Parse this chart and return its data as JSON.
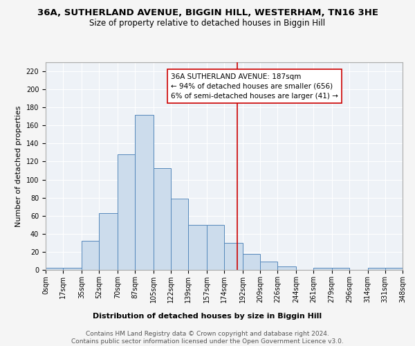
{
  "title": "36A, SUTHERLAND AVENUE, BIGGIN HILL, WESTERHAM, TN16 3HE",
  "subtitle": "Size of property relative to detached houses in Biggin Hill",
  "xlabel": "Distribution of detached houses by size in Biggin Hill",
  "ylabel": "Number of detached properties",
  "bin_labels": [
    "0sqm",
    "17sqm",
    "35sqm",
    "52sqm",
    "70sqm",
    "87sqm",
    "105sqm",
    "122sqm",
    "139sqm",
    "157sqm",
    "174sqm",
    "192sqm",
    "209sqm",
    "226sqm",
    "244sqm",
    "261sqm",
    "279sqm",
    "296sqm",
    "314sqm",
    "331sqm",
    "348sqm"
  ],
  "bar_heights": [
    2,
    2,
    32,
    63,
    128,
    172,
    113,
    79,
    50,
    50,
    30,
    18,
    9,
    4,
    0,
    2,
    2,
    0,
    2,
    2
  ],
  "bar_color": "#ccdcec",
  "bar_edge_color": "#5588bb",
  "vline_x": 187,
  "vline_color": "#cc0000",
  "annotation_text": "36A SUTHERLAND AVENUE: 187sqm\n← 94% of detached houses are smaller (656)\n6% of semi-detached houses are larger (41) →",
  "annotation_box_color": "#ffffff",
  "annotation_box_edge": "#cc0000",
  "ylim": [
    0,
    230
  ],
  "yticks": [
    0,
    20,
    40,
    60,
    80,
    100,
    120,
    140,
    160,
    180,
    200,
    220
  ],
  "bin_edges": [
    0,
    17,
    35,
    52,
    70,
    87,
    105,
    122,
    139,
    157,
    174,
    192,
    209,
    226,
    244,
    261,
    279,
    296,
    314,
    331,
    348
  ],
  "footer_text": "Contains HM Land Registry data © Crown copyright and database right 2024.\nContains public sector information licensed under the Open Government Licence v3.0.",
  "bg_color": "#eef2f7",
  "grid_color": "#ffffff",
  "title_fontsize": 9.5,
  "subtitle_fontsize": 8.5,
  "axis_label_fontsize": 8,
  "tick_fontsize": 7,
  "annotation_fontsize": 7.5,
  "footer_fontsize": 6.5
}
